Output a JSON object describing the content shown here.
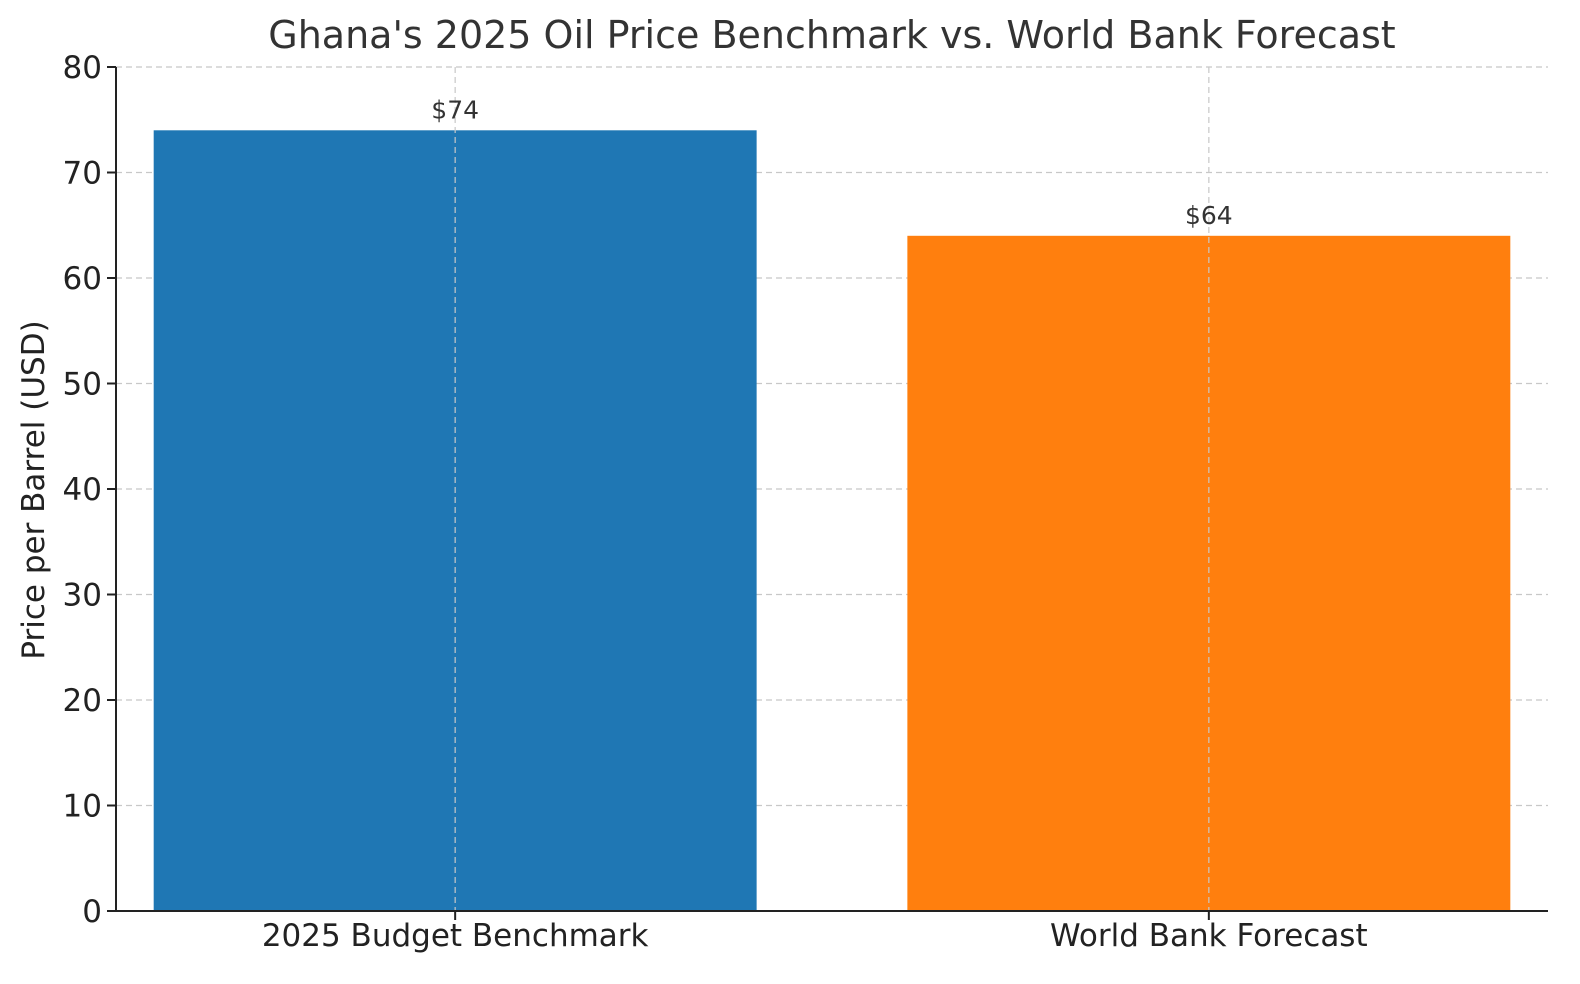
{
  "chart_data": {
    "type": "bar",
    "title": "Ghana's 2025 Oil Price Benchmark vs. World Bank Forecast",
    "xlabel": "",
    "ylabel": "Price per Barrel (USD)",
    "categories": [
      "2025 Budget Benchmark",
      "World Bank Forecast"
    ],
    "values": [
      74,
      64
    ],
    "data_labels": [
      "$74",
      "$64"
    ],
    "colors": [
      "#1f77b4",
      "#ff7f0e"
    ],
    "ylim": [
      0,
      80
    ],
    "yticks": [
      0,
      10,
      20,
      30,
      40,
      50,
      60,
      70,
      80
    ],
    "grid": true,
    "legend": "none"
  }
}
